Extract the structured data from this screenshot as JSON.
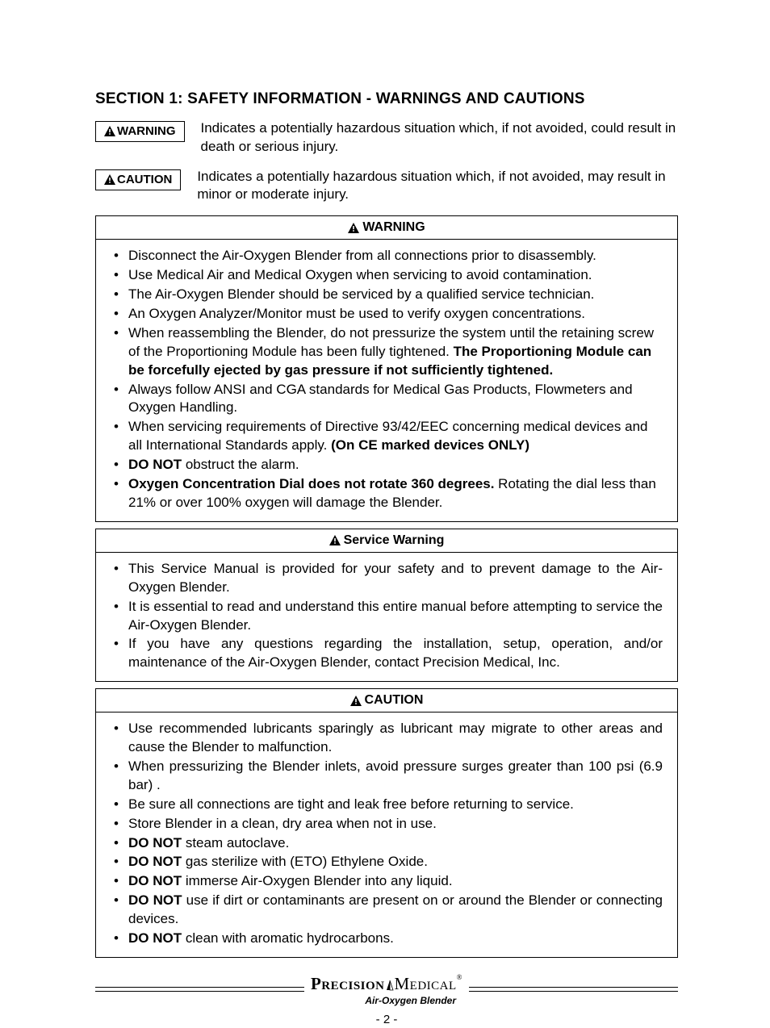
{
  "section_title": "SECTION 1: SAFETY INFORMATION - WARNINGS AND CAUTIONS",
  "definitions": {
    "warning": {
      "label": "WARNING",
      "text": "Indicates a potentially hazardous situation which, if not avoided, could result in death or serious injury."
    },
    "caution": {
      "label": "CAUTION",
      "text": "Indicates a potentially hazardous situation which, if not avoided, may result in minor or moderate injury."
    }
  },
  "warning_panel": {
    "header": "WARNING",
    "items": [
      {
        "text": "Disconnect the Air-Oxygen Blender from all connections prior to disassembly."
      },
      {
        "text": "Use Medical Air and Medical Oxygen when servicing to avoid contamination."
      },
      {
        "text": "The Air-Oxygen Blender should be serviced by a qualified service technician."
      },
      {
        "text": "An Oxygen Analyzer/Monitor must be used to verify oxygen concentrations."
      },
      {
        "pre": "When reassembling the Blender, do not pressurize the system until the retaining screw of the Proportioning Module has been fully tightened. ",
        "bold": "The Proportioning Module can be forcefully ejected by gas pressure if not sufficiently tightened."
      },
      {
        "text": "Always follow ANSI and CGA standards for Medical Gas Products, Flowmeters and Oxygen Handling."
      },
      {
        "pre": "When servicing requirements of Directive 93/42/EEC concerning medical devices and all International Standards apply. ",
        "bold": "(On CE marked devices ONLY)"
      },
      {
        "bold": "DO NOT",
        "post": " obstruct the alarm."
      },
      {
        "bold": "Oxygen Concentration Dial does not rotate 360 degrees.",
        "post": " Rotating the dial less than 21% or over 100% oxygen will damage the Blender."
      }
    ]
  },
  "service_panel": {
    "header": "Service Warning",
    "items": [
      {
        "text": "This Service Manual is provided for your safety and to prevent damage to the Air-Oxygen Blender."
      },
      {
        "text": "It is essential to read and understand this entire manual before attempting to service the Air-Oxygen Blender."
      },
      {
        "text": "If you have any questions regarding the installation, setup, operation, and/or maintenance of the Air-Oxygen Blender, contact Precision Medical, Inc."
      }
    ]
  },
  "caution_panel": {
    "header": "CAUTION",
    "items": [
      {
        "text": "Use recommended lubricants sparingly as lubricant may migrate to other areas and cause the Blender to malfunction."
      },
      {
        "text": "When pressurizing the Blender inlets, avoid pressure surges greater than 100 psi (6.9 bar) ."
      },
      {
        "text": "Be sure all connections are tight and leak free before returning to service."
      },
      {
        "text": "Store Blender in a clean, dry area when not in use."
      },
      {
        "bold": "DO NOT",
        "post": " steam autoclave."
      },
      {
        "bold": "DO NOT",
        "post": " gas sterilize with (ETO) Ethylene Oxide."
      },
      {
        "bold": "DO NOT",
        "post": " immerse Air-Oxygen Blender into any liquid."
      },
      {
        "bold": "DO NOT",
        "post": " use if dirt or contaminants are present on or around the Blender or connecting devices."
      },
      {
        "bold": "DO NOT",
        "post": " clean with aromatic hydrocarbons."
      }
    ]
  },
  "footer": {
    "brand1": "Precision",
    "brand2": "Medical",
    "trademark": "®",
    "product": "Air-Oxygen Blender",
    "page": "- 2 -"
  },
  "colors": {
    "text": "#000000",
    "background": "#ffffff",
    "border": "#000000"
  }
}
